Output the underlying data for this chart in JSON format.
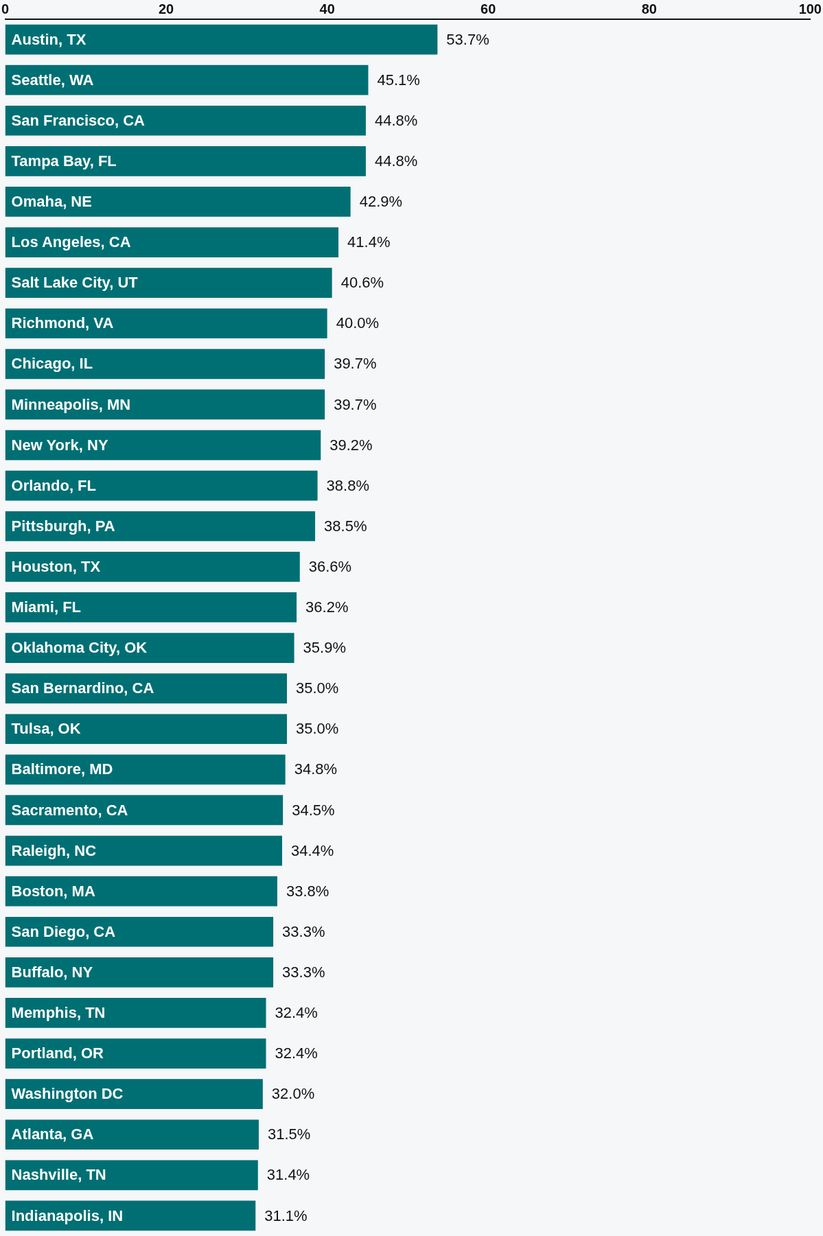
{
  "chart_data": {
    "type": "bar",
    "orientation": "horizontal",
    "categories": [
      "Austin, TX",
      "Seattle, WA",
      "San Francisco, CA",
      "Tampa Bay, FL",
      "Omaha, NE",
      "Los Angeles, CA",
      "Salt Lake City, UT",
      "Richmond, VA",
      "Chicago, IL",
      "Minneapolis, MN",
      "New York, NY",
      "Orlando, FL",
      "Pittsburgh, PA",
      "Houston, TX",
      "Miami, FL",
      "Oklahoma City, OK",
      "San Bernardino, CA",
      "Tulsa, OK",
      "Baltimore, MD",
      "Sacramento, CA",
      "Raleigh, NC",
      "Boston, MA",
      "San Diego, CA",
      "Buffalo, NY",
      "Memphis, TN",
      "Portland, OR",
      "Washington DC",
      "Atlanta, GA",
      "Nashville, TN",
      "Indianapolis, IN"
    ],
    "values": [
      53.7,
      45.1,
      44.8,
      44.8,
      42.9,
      41.4,
      40.6,
      40.0,
      39.7,
      39.7,
      39.2,
      38.8,
      38.5,
      36.6,
      36.2,
      35.9,
      35.0,
      35.0,
      34.8,
      34.5,
      34.4,
      33.8,
      33.3,
      33.3,
      32.4,
      32.4,
      32.0,
      31.5,
      31.4,
      31.1
    ],
    "value_labels": [
      "53.7%",
      "45.1%",
      "44.8%",
      "44.8%",
      "42.9%",
      "41.4%",
      "40.6%",
      "40.0%",
      "39.7%",
      "39.7%",
      "39.2%",
      "38.8%",
      "38.5%",
      "36.6%",
      "36.2%",
      "35.9%",
      "35.0%",
      "35.0%",
      "34.8%",
      "34.5%",
      "34.4%",
      "33.8%",
      "33.3%",
      "33.3%",
      "32.4%",
      "32.4%",
      "32.0%",
      "31.5%",
      "31.4%",
      "31.1%"
    ],
    "color": "#006f73",
    "xlim": [
      0,
      100
    ],
    "xticks": [
      0,
      20,
      40,
      60,
      80,
      100
    ],
    "grid": false,
    "legend": false
  }
}
